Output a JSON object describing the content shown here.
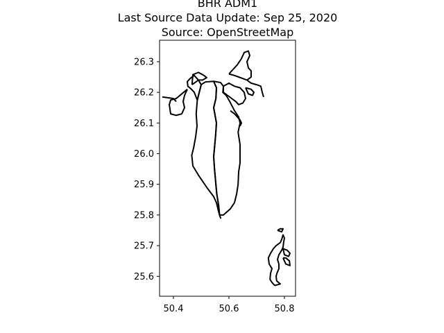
{
  "figure": {
    "title_lines": [
      "BHR ADM1",
      "Last Source Data Update: Sep 25, 2020",
      "Source: OpenStreetMap"
    ]
  },
  "axes": {
    "x_ticks": [
      "50.4",
      "50.6",
      "50.8"
    ],
    "y_ticks": [
      "26.3",
      "26.2",
      "26.1",
      "26.0",
      "25.9",
      "25.8",
      "25.7",
      "25.6"
    ]
  },
  "chart_data": {
    "type": "map",
    "xlim": [
      50.35,
      50.84
    ],
    "ylim": [
      25.535,
      26.37
    ],
    "grid": false,
    "line_color": "#000000",
    "boundaries": [
      {
        "points": [
          [
            50.515,
            26.234
          ],
          [
            50.545,
            26.236
          ],
          [
            50.555,
            26.215
          ],
          [
            50.553,
            26.18
          ],
          [
            50.545,
            26.15
          ],
          [
            50.555,
            26.1
          ],
          [
            50.552,
            26.06
          ],
          [
            50.548,
            26.02
          ],
          [
            50.545,
            25.99
          ],
          [
            50.548,
            25.95
          ],
          [
            50.552,
            25.91
          ],
          [
            50.556,
            25.87
          ],
          [
            50.563,
            25.83
          ],
          [
            50.566,
            25.8
          ],
          [
            50.57,
            25.79
          ],
          [
            50.563,
            25.81
          ],
          [
            50.555,
            25.84
          ],
          [
            50.545,
            25.86
          ],
          [
            50.52,
            25.89
          ],
          [
            50.49,
            25.93
          ],
          [
            50.47,
            25.96
          ],
          [
            50.466,
            25.995
          ],
          [
            50.473,
            26.02
          ],
          [
            50.48,
            26.055
          ],
          [
            50.485,
            26.09
          ],
          [
            50.482,
            26.13
          ],
          [
            50.486,
            26.175
          ],
          [
            50.5,
            26.225
          ],
          [
            50.515,
            26.234
          ]
        ]
      },
      {
        "points": [
          [
            50.545,
            26.236
          ],
          [
            50.57,
            26.232
          ],
          [
            50.58,
            26.22
          ],
          [
            50.578,
            26.2
          ],
          [
            50.59,
            26.19
          ],
          [
            50.603,
            26.17
          ],
          [
            50.62,
            26.14
          ],
          [
            50.635,
            26.12
          ],
          [
            50.64,
            26.1
          ],
          [
            50.633,
            26.07
          ],
          [
            50.64,
            26.03
          ],
          [
            50.64,
            25.97
          ],
          [
            50.635,
            25.94
          ],
          [
            50.633,
            25.9
          ],
          [
            50.628,
            25.87
          ],
          [
            50.62,
            25.84
          ],
          [
            50.605,
            25.82
          ],
          [
            50.58,
            25.8
          ],
          [
            50.566,
            25.8
          ],
          [
            50.563,
            25.83
          ],
          [
            50.556,
            25.87
          ],
          [
            50.552,
            25.91
          ],
          [
            50.548,
            25.95
          ],
          [
            50.545,
            25.99
          ],
          [
            50.548,
            26.02
          ],
          [
            50.552,
            26.06
          ],
          [
            50.555,
            26.1
          ],
          [
            50.545,
            26.15
          ],
          [
            50.553,
            26.18
          ],
          [
            50.555,
            26.215
          ],
          [
            50.545,
            26.236
          ]
        ]
      },
      {
        "points": [
          [
            50.5,
            26.225
          ],
          [
            50.49,
            26.24
          ],
          [
            50.475,
            26.255
          ],
          [
            50.46,
            26.245
          ],
          [
            50.45,
            26.235
          ],
          [
            50.452,
            26.22
          ],
          [
            50.465,
            26.21
          ],
          [
            50.475,
            26.2
          ],
          [
            50.486,
            26.175
          ],
          [
            50.5,
            26.225
          ]
        ]
      },
      {
        "points": [
          [
            50.467,
            26.225
          ],
          [
            50.47,
            26.258
          ],
          [
            50.49,
            26.265
          ],
          [
            50.51,
            26.255
          ],
          [
            50.52,
            26.248
          ],
          [
            50.505,
            26.24
          ],
          [
            50.49,
            26.24
          ],
          [
            50.467,
            26.225
          ]
        ]
      },
      {
        "points": [
          [
            50.45,
            26.21
          ],
          [
            50.44,
            26.19
          ],
          [
            50.435,
            26.17
          ],
          [
            50.44,
            26.15
          ],
          [
            50.43,
            26.13
          ],
          [
            50.41,
            26.125
          ],
          [
            50.39,
            26.13
          ],
          [
            50.385,
            26.16
          ],
          [
            50.39,
            26.175
          ],
          [
            50.41,
            26.18
          ],
          [
            50.43,
            26.195
          ],
          [
            50.45,
            26.21
          ]
        ]
      },
      {
        "points": [
          [
            50.36,
            26.185
          ],
          [
            50.4,
            26.18
          ],
          [
            50.41,
            26.17
          ]
        ]
      },
      {
        "points": [
          [
            50.58,
            26.22
          ],
          [
            50.6,
            26.23
          ],
          [
            50.62,
            26.22
          ],
          [
            50.64,
            26.215
          ],
          [
            50.655,
            26.2
          ],
          [
            50.66,
            26.18
          ],
          [
            50.65,
            26.165
          ],
          [
            50.635,
            26.16
          ],
          [
            50.625,
            26.17
          ],
          [
            50.61,
            26.18
          ],
          [
            50.595,
            26.19
          ],
          [
            50.58,
            26.2
          ],
          [
            50.58,
            26.22
          ]
        ]
      },
      {
        "points": [
          [
            50.6,
            26.26
          ],
          [
            50.615,
            26.275
          ],
          [
            50.63,
            26.29
          ],
          [
            50.645,
            26.31
          ],
          [
            50.655,
            26.33
          ],
          [
            50.67,
            26.335
          ],
          [
            50.675,
            26.32
          ],
          [
            50.665,
            26.3
          ],
          [
            50.67,
            26.28
          ],
          [
            50.68,
            26.27
          ],
          [
            50.68,
            26.25
          ],
          [
            50.665,
            26.24
          ],
          [
            50.65,
            26.245
          ],
          [
            50.635,
            26.25
          ],
          [
            50.62,
            26.255
          ],
          [
            50.6,
            26.26
          ]
        ]
      },
      {
        "points": [
          [
            50.665,
            26.24
          ],
          [
            50.68,
            26.23
          ],
          [
            50.7,
            26.225
          ],
          [
            50.715,
            26.22
          ],
          [
            50.72,
            26.2
          ],
          [
            50.725,
            26.185
          ]
        ]
      },
      {
        "points": [
          [
            50.66,
            26.215
          ],
          [
            50.68,
            26.21
          ],
          [
            50.69,
            26.2
          ],
          [
            50.685,
            26.19
          ],
          [
            50.67,
            26.195
          ],
          [
            50.66,
            26.215
          ]
        ]
      },
      {
        "points": [
          [
            50.605,
            26.14
          ],
          [
            50.62,
            26.13
          ],
          [
            50.63,
            26.12
          ],
          [
            50.64,
            26.11
          ],
          [
            50.645,
            26.1
          ],
          [
            50.64,
            26.09
          ]
        ]
      },
      {
        "points": [
          [
            50.765,
            25.57
          ],
          [
            50.755,
            25.58
          ],
          [
            50.748,
            25.59
          ],
          [
            50.75,
            25.61
          ],
          [
            50.755,
            25.625
          ],
          [
            50.745,
            25.64
          ],
          [
            50.742,
            25.66
          ],
          [
            50.75,
            25.675
          ],
          [
            50.76,
            25.69
          ],
          [
            50.77,
            25.7
          ],
          [
            50.785,
            25.71
          ],
          [
            50.79,
            25.72
          ],
          [
            50.795,
            25.735
          ],
          [
            50.8,
            25.725
          ],
          [
            50.797,
            25.71
          ],
          [
            50.795,
            25.695
          ],
          [
            50.79,
            25.685
          ],
          [
            50.78,
            25.67
          ],
          [
            50.775,
            25.655
          ],
          [
            50.78,
            25.64
          ],
          [
            50.78,
            25.625
          ],
          [
            50.773,
            25.61
          ],
          [
            50.77,
            25.6
          ],
          [
            50.772,
            25.585
          ],
          [
            50.785,
            25.575
          ],
          [
            50.765,
            25.57
          ]
        ]
      },
      {
        "points": [
          [
            50.795,
            25.69
          ],
          [
            50.81,
            25.685
          ],
          [
            50.82,
            25.675
          ],
          [
            50.815,
            25.665
          ],
          [
            50.8,
            25.67
          ],
          [
            50.795,
            25.69
          ]
        ]
      },
      {
        "points": [
          [
            50.795,
            25.66
          ],
          [
            50.805,
            25.64
          ],
          [
            50.82,
            25.635
          ],
          [
            50.818,
            25.65
          ],
          [
            50.805,
            25.66
          ],
          [
            50.795,
            25.66
          ]
        ]
      },
      {
        "points": [
          [
            50.775,
            25.75
          ],
          [
            50.785,
            25.755
          ],
          [
            50.795,
            25.755
          ],
          [
            50.79,
            25.745
          ],
          [
            50.775,
            25.75
          ]
        ]
      }
    ]
  }
}
